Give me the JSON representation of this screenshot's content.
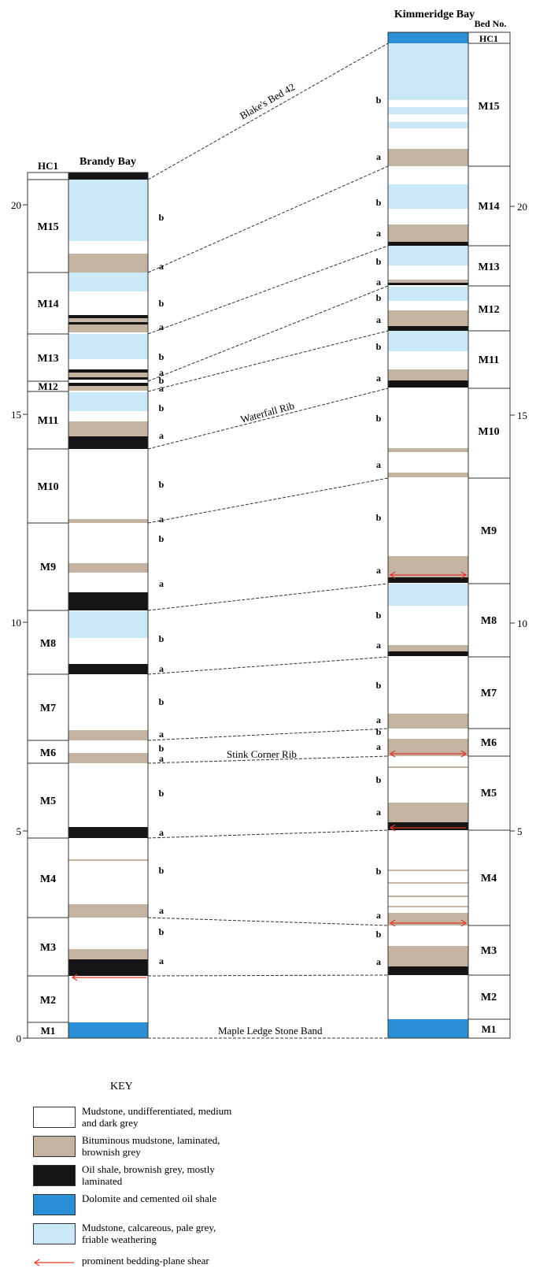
{
  "colors": {
    "mudstone": "#ffffff",
    "bituminous": "#c4b3a0",
    "oil_shale": "#151515",
    "dolomite": "#2a8fd4",
    "calcareous": "#cbe8f6",
    "shear_arrow": "#e0392a",
    "correlation_line": "#333333"
  },
  "headers": {
    "brandy_hc1": "HC1",
    "brandy": "Brandy Bay",
    "kimmeridge": "Kimmeridge Bay",
    "bed_no": "Bed No."
  },
  "hc1_label": "HC1",
  "scale": {
    "left_ticks": [
      "0",
      "5",
      "10",
      "15",
      "20"
    ],
    "right_ticks": [
      "5",
      "10",
      "15",
      "20"
    ]
  },
  "named_horizons": [
    "Blake's Bed 42",
    "Waterfall Rib",
    "Stink Corner Rib",
    "Maple Ledge Stone Band"
  ],
  "beds": [
    "M1",
    "M2",
    "M3",
    "M4",
    "M5",
    "M6",
    "M7",
    "M8",
    "M9",
    "M10",
    "M11",
    "M12",
    "M13",
    "M14",
    "M15"
  ],
  "subdivision_labels": {
    "a": "a",
    "b": "b"
  },
  "key": {
    "title": "KEY",
    "items": [
      {
        "type": "mudstone",
        "text": "Mudstone, undifferentiated, medium and dark grey"
      },
      {
        "type": "bituminous",
        "text": "Bituminous mudstone, laminated, brownish grey"
      },
      {
        "type": "oil_shale",
        "text": "Oil shale, brownish grey, mostly laminated"
      },
      {
        "type": "dolomite",
        "text": "Dolomite and cemented oil shale"
      },
      {
        "type": "calcareous",
        "text": "Mudstone, calcareous, pale grey, friable weathering"
      },
      {
        "type": "shear",
        "text": "prominent bedding-plane shear"
      }
    ]
  }
}
